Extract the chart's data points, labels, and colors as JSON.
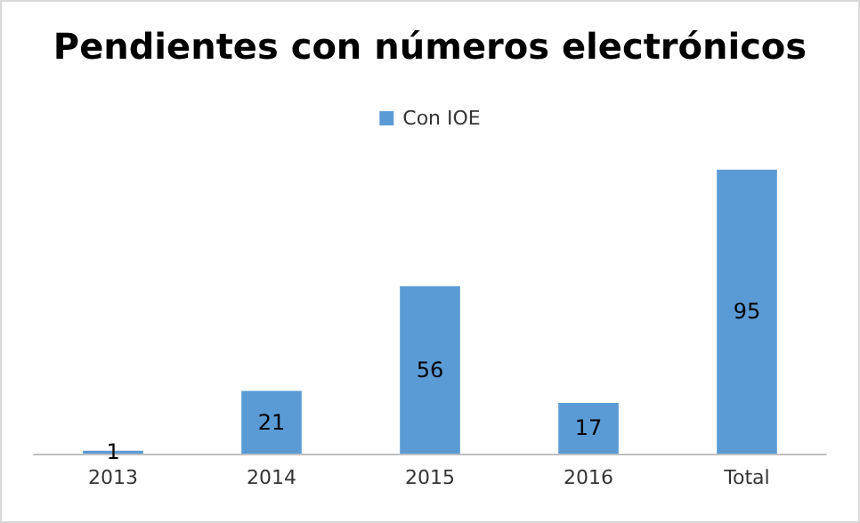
{
  "chart_data": {
    "type": "bar",
    "title": "Pendientes con números electrónicos",
    "categories": [
      "2013",
      "2014",
      "2015",
      "2016",
      "Total"
    ],
    "series": [
      {
        "name": "Con IOE",
        "color": "#5b9bd5",
        "values": [
          1,
          21,
          56,
          17,
          95
        ]
      }
    ],
    "data_labels": true,
    "legend": "top"
  }
}
